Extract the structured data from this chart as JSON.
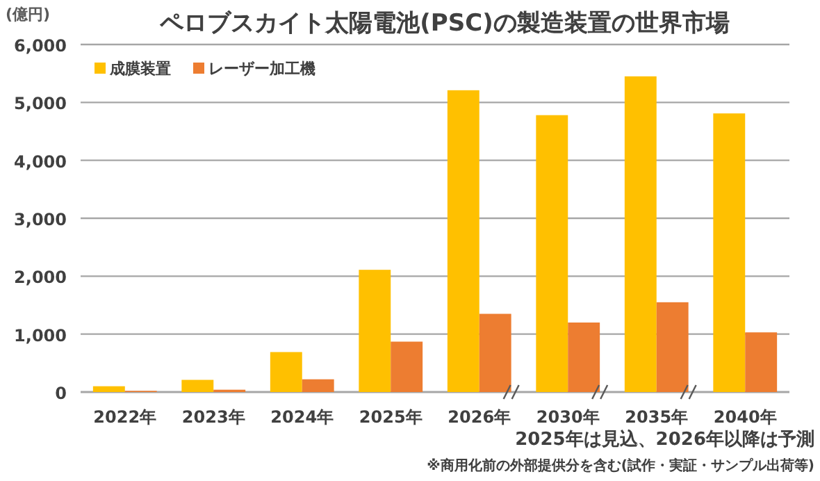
{
  "chart_data": {
    "type": "bar",
    "title": "ペロブスカイト太陽電池(PSC)の製造装置の世界市場",
    "ylabel": "(億円)",
    "categories": [
      "2022年",
      "2023年",
      "2024年",
      "2025年",
      "2026年",
      "2030年",
      "2035年",
      "2040年"
    ],
    "series": [
      {
        "name": "成膜装置",
        "color": "#ffc000",
        "values": [
          100,
          210,
          690,
          2110,
          5210,
          4780,
          5450,
          4810
        ]
      },
      {
        "name": "レーザー加工機",
        "color": "#ed7d31",
        "values": [
          20,
          40,
          220,
          870,
          1350,
          1200,
          1550,
          1030
        ]
      }
    ],
    "ylim": [
      0,
      6000
    ],
    "yticks": [
      {
        "value": 0,
        "label": "0"
      },
      {
        "value": 1000,
        "label": "1,000"
      },
      {
        "value": 2000,
        "label": "2,000"
      },
      {
        "value": 3000,
        "label": "3,000"
      },
      {
        "value": 4000,
        "label": "4,000"
      },
      {
        "value": 5000,
        "label": "5,000"
      },
      {
        "value": 6000,
        "label": "6,000"
      }
    ],
    "grid": "y",
    "legend": "top left",
    "annotations": [
      "2025年は見込、2026年以降は予測",
      "※商用化前の外部提供分を含む(試作・実証・サンプル出荷等)"
    ]
  }
}
